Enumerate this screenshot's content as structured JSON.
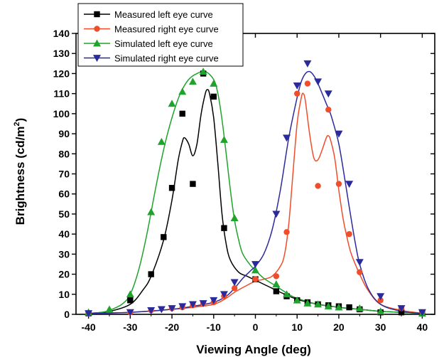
{
  "chart_data": {
    "type": "scatter",
    "xlabel": "Viewing Angle (deg)",
    "ylabel_main": "Brightness (cd/m",
    "ylabel_sup": "2",
    "ylabel_tail": ")",
    "xlim": [
      -43,
      43
    ],
    "ylim": [
      0,
      140
    ],
    "xticks": [
      -40,
      -30,
      -20,
      -10,
      0,
      10,
      20,
      30,
      40
    ],
    "yticks": [
      0,
      10,
      20,
      30,
      40,
      50,
      60,
      70,
      80,
      90,
      100,
      110,
      120,
      130,
      140
    ],
    "legend_position": "top-left",
    "series": [
      {
        "name": "Measured left eye curve",
        "color": "#000000",
        "marker": "square",
        "points": [
          [
            -40,
            0.5
          ],
          [
            -30,
            7
          ],
          [
            -25,
            20
          ],
          [
            -22,
            38.5
          ],
          [
            -20,
            63
          ],
          [
            -17.5,
            100
          ],
          [
            -15,
            65
          ],
          [
            -12.5,
            120
          ],
          [
            -10,
            108.5
          ],
          [
            -7.5,
            43
          ],
          [
            0,
            17.5
          ],
          [
            5,
            11.5
          ],
          [
            7.5,
            9
          ],
          [
            10,
            7
          ],
          [
            12.5,
            6
          ],
          [
            15,
            5
          ],
          [
            17.5,
            4.5
          ],
          [
            20,
            4
          ],
          [
            22.5,
            3.5
          ],
          [
            25,
            2.5
          ],
          [
            30,
            1
          ],
          [
            35,
            1
          ],
          [
            40,
            0.5
          ]
        ],
        "line": [
          [
            -40,
            0.5
          ],
          [
            -35,
            1.5
          ],
          [
            -30,
            5
          ],
          [
            -27,
            12
          ],
          [
            -25,
            19
          ],
          [
            -22,
            37
          ],
          [
            -20,
            57
          ],
          [
            -18.5,
            77
          ],
          [
            -17.5,
            86
          ],
          [
            -17,
            88
          ],
          [
            -16,
            85
          ],
          [
            -15,
            79
          ],
          [
            -14,
            85
          ],
          [
            -13,
            100
          ],
          [
            -12,
            110
          ],
          [
            -11.5,
            112
          ],
          [
            -11,
            110
          ],
          [
            -10,
            98
          ],
          [
            -9,
            75
          ],
          [
            -8,
            50
          ],
          [
            -7,
            35
          ],
          [
            -6,
            27
          ],
          [
            -4,
            21
          ],
          [
            -2,
            19
          ],
          [
            0,
            17
          ],
          [
            3,
            14
          ],
          [
            6,
            11
          ],
          [
            10,
            7.5
          ],
          [
            15,
            5
          ],
          [
            20,
            3.5
          ],
          [
            25,
            2.5
          ],
          [
            30,
            1.5
          ],
          [
            35,
            1
          ],
          [
            40,
            0.5
          ]
        ]
      },
      {
        "name": "Measured right eye curve",
        "color": "#f04d2a",
        "marker": "circle",
        "points": [
          [
            -40,
            0.5
          ],
          [
            -30,
            1
          ],
          [
            -25,
            2
          ],
          [
            -20,
            3
          ],
          [
            -17.5,
            3.5
          ],
          [
            -15,
            4.5
          ],
          [
            -12.5,
            5.5
          ],
          [
            -10,
            6
          ],
          [
            -7.5,
            9
          ],
          [
            -5,
            13
          ],
          [
            0,
            17.5
          ],
          [
            5,
            19
          ],
          [
            7.5,
            41
          ],
          [
            10,
            110
          ],
          [
            12.5,
            115
          ],
          [
            15,
            64
          ],
          [
            17.5,
            102
          ],
          [
            20,
            65
          ],
          [
            22.5,
            40
          ],
          [
            25,
            21
          ],
          [
            30,
            7
          ],
          [
            35,
            3
          ],
          [
            40,
            1
          ]
        ],
        "line": [
          [
            -40,
            0.5
          ],
          [
            -30,
            1
          ],
          [
            -20,
            2.5
          ],
          [
            -15,
            3.5
          ],
          [
            -10,
            5
          ],
          [
            -7,
            8
          ],
          [
            -5,
            11
          ],
          [
            -2,
            14.5
          ],
          [
            0,
            16.5
          ],
          [
            2,
            17.5
          ],
          [
            4,
            19
          ],
          [
            6,
            24
          ],
          [
            7,
            30
          ],
          [
            8,
            45
          ],
          [
            9,
            70
          ],
          [
            10,
            95
          ],
          [
            11,
            108
          ],
          [
            11.5,
            110
          ],
          [
            12,
            106
          ],
          [
            13,
            90
          ],
          [
            14,
            78
          ],
          [
            15,
            77
          ],
          [
            16,
            82
          ],
          [
            17,
            88
          ],
          [
            17.5,
            89
          ],
          [
            18,
            87
          ],
          [
            19,
            78
          ],
          [
            20,
            62
          ],
          [
            21,
            48
          ],
          [
            22,
            38
          ],
          [
            23,
            30
          ],
          [
            25,
            20
          ],
          [
            27,
            12
          ],
          [
            30,
            5
          ],
          [
            35,
            2
          ],
          [
            40,
            0.5
          ]
        ]
      },
      {
        "name": "Simulated left eye curve",
        "color": "#1fa32c",
        "marker": "triangle-up",
        "points": [
          [
            -40,
            1
          ],
          [
            -35,
            2.5
          ],
          [
            -30,
            10
          ],
          [
            -25,
            51
          ],
          [
            -22.5,
            86
          ],
          [
            -20,
            105
          ],
          [
            -17.5,
            111
          ],
          [
            -15,
            116
          ],
          [
            -12.5,
            121
          ],
          [
            -10,
            115
          ],
          [
            -7.5,
            87
          ],
          [
            -5,
            48
          ],
          [
            0,
            22
          ],
          [
            5,
            15
          ],
          [
            7.5,
            10
          ],
          [
            10,
            7
          ],
          [
            12.5,
            5.5
          ],
          [
            15,
            5
          ],
          [
            17.5,
            4
          ],
          [
            20,
            3.5
          ],
          [
            25,
            3
          ],
          [
            30,
            1.5
          ],
          [
            40,
            0.5
          ]
        ],
        "line": [
          [
            -40,
            0.5
          ],
          [
            -37,
            1
          ],
          [
            -35,
            2
          ],
          [
            -32,
            5
          ],
          [
            -30,
            10
          ],
          [
            -28,
            22
          ],
          [
            -26,
            40
          ],
          [
            -24,
            62
          ],
          [
            -22,
            82
          ],
          [
            -20,
            98
          ],
          [
            -18,
            110
          ],
          [
            -16,
            117
          ],
          [
            -14,
            120
          ],
          [
            -12,
            121
          ],
          [
            -10,
            117
          ],
          [
            -9,
            110
          ],
          [
            -8,
            97
          ],
          [
            -7,
            80
          ],
          [
            -6,
            62
          ],
          [
            -5,
            47
          ],
          [
            -4,
            37
          ],
          [
            -3,
            30
          ],
          [
            -1,
            24
          ],
          [
            0,
            22
          ],
          [
            2,
            18
          ],
          [
            5,
            14
          ],
          [
            8,
            10
          ],
          [
            10,
            8
          ],
          [
            15,
            5
          ],
          [
            20,
            3.5
          ],
          [
            25,
            2.5
          ],
          [
            30,
            1.5
          ],
          [
            35,
            1
          ],
          [
            40,
            0.5
          ]
        ]
      },
      {
        "name": "Simulated right eye curve",
        "color": "#2b2a9c",
        "marker": "triangle-down",
        "points": [
          [
            -40,
            0.5
          ],
          [
            -30,
            1
          ],
          [
            -25,
            2
          ],
          [
            -22.5,
            2.5
          ],
          [
            -20,
            3
          ],
          [
            -17.5,
            4
          ],
          [
            -15,
            5
          ],
          [
            -12.5,
            5.5
          ],
          [
            -10,
            7
          ],
          [
            -7.5,
            10
          ],
          [
            -5,
            16
          ],
          [
            0,
            25
          ],
          [
            5,
            50
          ],
          [
            7.5,
            88
          ],
          [
            10,
            114
          ],
          [
            12.5,
            125
          ],
          [
            15,
            116
          ],
          [
            17.5,
            110
          ],
          [
            20,
            90
          ],
          [
            22.5,
            65
          ],
          [
            25,
            26
          ],
          [
            30,
            9
          ],
          [
            35,
            3
          ],
          [
            40,
            1
          ]
        ],
        "line": [
          [
            -40,
            0.5
          ],
          [
            -30,
            1
          ],
          [
            -20,
            2.5
          ],
          [
            -15,
            4
          ],
          [
            -10,
            6
          ],
          [
            -7,
            9
          ],
          [
            -5,
            13
          ],
          [
            -3,
            18
          ],
          [
            -1,
            22
          ],
          [
            0,
            24
          ],
          [
            2,
            30
          ],
          [
            4,
            42
          ],
          [
            6,
            62
          ],
          [
            8,
            88
          ],
          [
            10,
            108
          ],
          [
            11,
            116
          ],
          [
            12,
            120
          ],
          [
            13,
            121
          ],
          [
            14,
            119
          ],
          [
            15,
            115
          ],
          [
            16,
            110
          ],
          [
            17,
            105
          ],
          [
            18,
            100
          ],
          [
            19,
            93
          ],
          [
            20,
            85
          ],
          [
            21,
            73
          ],
          [
            22,
            60
          ],
          [
            23,
            47
          ],
          [
            24,
            35
          ],
          [
            25,
            25
          ],
          [
            27,
            13
          ],
          [
            30,
            5
          ],
          [
            35,
            1.5
          ],
          [
            40,
            0.5
          ]
        ]
      }
    ]
  }
}
